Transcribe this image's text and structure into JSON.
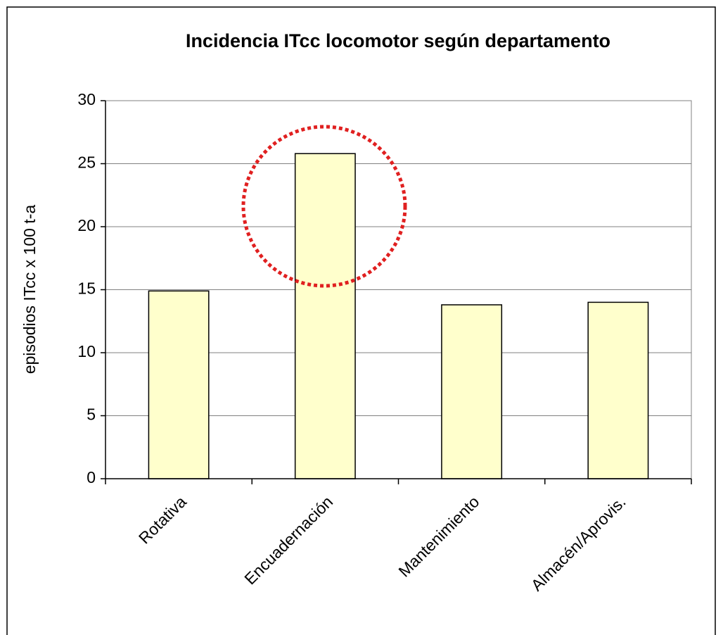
{
  "chart_data": {
    "type": "bar",
    "title": "Incidencia ITcc locomotor según departamento",
    "y_label": "episodios ITcc x 100 t-a",
    "categories": [
      "Rotativa",
      "Encuadernación",
      "Mantenimiento",
      "Almacén/Aprovis."
    ],
    "values": [
      14.9,
      25.8,
      13.8,
      14.0
    ],
    "color": "#ffffcc",
    "ylim": [
      0,
      30
    ],
    "yticks": [
      0,
      5,
      10,
      15,
      20,
      25,
      30
    ],
    "grid": true
  }
}
